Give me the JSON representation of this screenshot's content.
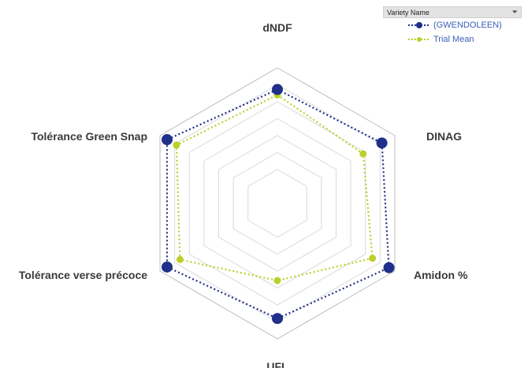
{
  "legend": {
    "title": "Variety Name",
    "filter_icon": "filter-icon"
  },
  "chart_data": {
    "type": "radar",
    "axes": [
      "dNDF",
      "DINAG",
      "Amidon %",
      "UFL",
      "Tolérance verse précoce",
      "Tolérance Green Snap"
    ],
    "rlim": [
      0,
      1
    ],
    "grid": true,
    "grid_rings": 7,
    "legend_position": "top-right",
    "series": [
      {
        "name": "(GWENDOLEEN)",
        "values": [
          0.84,
          0.89,
          0.95,
          0.85,
          0.94,
          0.94
        ],
        "color": "#1f2f8a",
        "marker_size": "large"
      },
      {
        "name": "Trial Mean",
        "values": [
          0.8,
          0.73,
          0.81,
          0.57,
          0.83,
          0.86
        ],
        "color": "#bccf2a",
        "marker_size": "small"
      }
    ]
  }
}
